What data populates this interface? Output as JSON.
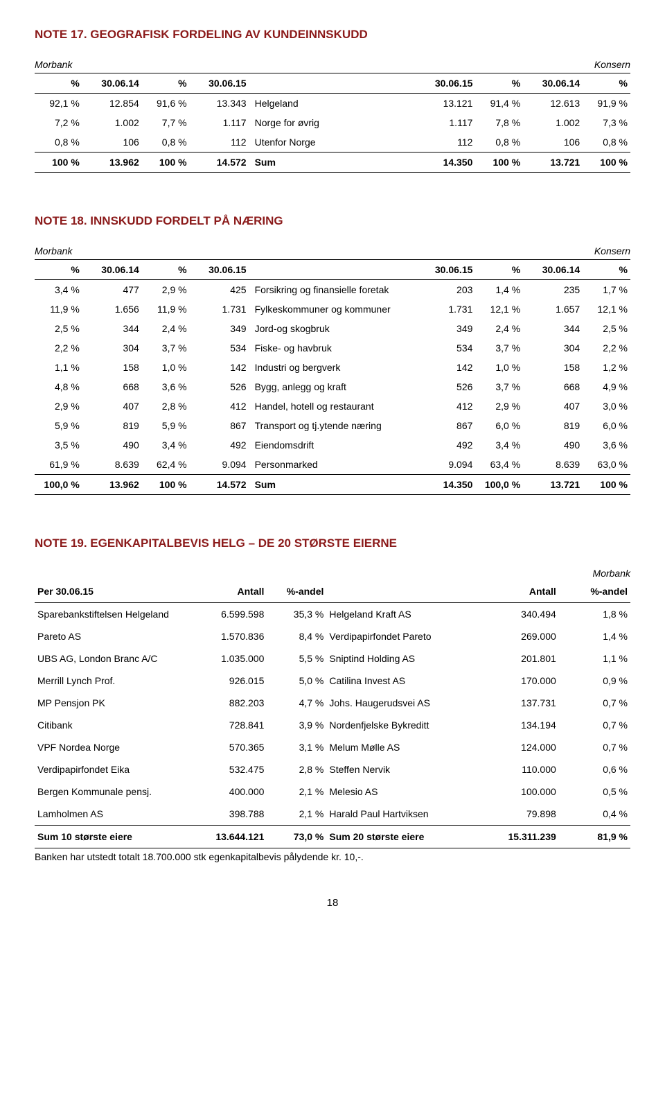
{
  "labels": {
    "morbank": "Morbank",
    "konsern": "Konsern"
  },
  "note17": {
    "title": "NOTE 17. GEOGRAFISK FORDELING AV KUNDEINNSKUDD",
    "header": [
      "%",
      "30.06.14",
      "%",
      "30.06.15",
      "",
      "30.06.15",
      "%",
      "30.06.14",
      "%"
    ],
    "rows": [
      [
        "92,1 %",
        "12.854",
        "91,6 %",
        "13.343",
        "Helgeland",
        "13.121",
        "91,4 %",
        "12.613",
        "91,9 %"
      ],
      [
        "7,2 %",
        "1.002",
        "7,7 %",
        "1.117",
        "Norge for øvrig",
        "1.117",
        "7,8 %",
        "1.002",
        "7,3 %"
      ],
      [
        "0,8 %",
        "106",
        "0,8 %",
        "112",
        "Utenfor Norge",
        "112",
        "0,8 %",
        "106",
        "0,8 %"
      ]
    ],
    "sum": [
      "100 %",
      "13.962",
      "100 %",
      "14.572",
      "Sum",
      "14.350",
      "100 %",
      "13.721",
      "100 %"
    ]
  },
  "note18": {
    "title": "NOTE 18. INNSKUDD FORDELT PÅ NÆRING",
    "header": [
      "%",
      "30.06.14",
      "%",
      "30.06.15",
      "",
      "30.06.15",
      "%",
      "30.06.14",
      "%"
    ],
    "rows": [
      [
        "3,4 %",
        "477",
        "2,9 %",
        "425",
        "Forsikring og finansielle foretak",
        "203",
        "1,4 %",
        "235",
        "1,7 %"
      ],
      [
        "11,9 %",
        "1.656",
        "11,9 %",
        "1.731",
        "Fylkeskommuner og kommuner",
        "1.731",
        "12,1 %",
        "1.657",
        "12,1 %"
      ],
      [
        "2,5 %",
        "344",
        "2,4 %",
        "349",
        "Jord-og skogbruk",
        "349",
        "2,4 %",
        "344",
        "2,5 %"
      ],
      [
        "2,2 %",
        "304",
        "3,7 %",
        "534",
        "Fiske- og havbruk",
        "534",
        "3,7 %",
        "304",
        "2,2 %"
      ],
      [
        "1,1 %",
        "158",
        "1,0 %",
        "142",
        "Industri og bergverk",
        "142",
        "1,0 %",
        "158",
        "1,2 %"
      ],
      [
        "4,8 %",
        "668",
        "3,6 %",
        "526",
        "Bygg, anlegg og kraft",
        "526",
        "3,7 %",
        "668",
        "4,9 %"
      ],
      [
        "2,9 %",
        "407",
        "2,8 %",
        "412",
        "Handel, hotell og restaurant",
        "412",
        "2,9 %",
        "407",
        "3,0 %"
      ],
      [
        "5,9 %",
        "819",
        "5,9 %",
        "867",
        "Transport og tj.ytende næring",
        "867",
        "6,0 %",
        "819",
        "6,0 %"
      ],
      [
        "3,5 %",
        "490",
        "3,4 %",
        "492",
        "Eiendomsdrift",
        "492",
        "3,4 %",
        "490",
        "3,6 %"
      ],
      [
        "61,9 %",
        "8.639",
        "62,4 %",
        "9.094",
        "Personmarked",
        "9.094",
        "63,4 %",
        "8.639",
        "63,0 %"
      ]
    ],
    "sum": [
      "100,0 %",
      "13.962",
      "100 %",
      "14.572",
      "Sum",
      "14.350",
      "100,0 %",
      "13.721",
      "100 %"
    ]
  },
  "note19": {
    "title": "NOTE 19. EGENKAPITALBEVIS HELG – DE 20 STØRSTE EIERNE",
    "header": [
      "Per 30.06.15",
      "Antall",
      "%-andel",
      "",
      "Antall",
      "%-andel"
    ],
    "rows": [
      [
        "Sparebankstiftelsen Helgeland",
        "6.599.598",
        "35,3 %",
        "Helgeland Kraft AS",
        "340.494",
        "1,8 %"
      ],
      [
        "Pareto AS",
        "1.570.836",
        "8,4 %",
        "Verdipapirfondet Pareto",
        "269.000",
        "1,4 %"
      ],
      [
        "UBS AG, London Branc A/C",
        "1.035.000",
        "5,5 %",
        "Sniptind Holding AS",
        "201.801",
        "1,1 %"
      ],
      [
        "Merrill Lynch Prof.",
        "926.015",
        "5,0 %",
        "Catilina Invest AS",
        "170.000",
        "0,9 %"
      ],
      [
        "MP Pensjon PK",
        "882.203",
        "4,7 %",
        "Johs. Haugerudsvei AS",
        "137.731",
        "0,7 %"
      ],
      [
        "Citibank",
        "728.841",
        "3,9 %",
        "Nordenfjelske Bykreditt",
        "134.194",
        "0,7 %"
      ],
      [
        "VPF Nordea Norge",
        "570.365",
        "3,1 %",
        "Melum Mølle AS",
        "124.000",
        "0,7 %"
      ],
      [
        "Verdipapirfondet Eika",
        "532.475",
        "2,8 %",
        "Steffen Nervik",
        "110.000",
        "0,6 %"
      ],
      [
        "Bergen Kommunale pensj.",
        "400.000",
        "2,1 %",
        "Melesio AS",
        "100.000",
        "0,5 %"
      ],
      [
        "Lamholmen AS",
        "398.788",
        "2,1 %",
        "Harald Paul Hartviksen",
        "79.898",
        "0,4 %"
      ]
    ],
    "sum": [
      "Sum 10 største eiere",
      "13.644.121",
      "73,0 %",
      "Sum 20 største eiere",
      "15.311.239",
      "81,9 %"
    ],
    "footnote": "Banken har utstedt totalt 18.700.000 stk egenkapitalbevis pålydende kr. 10,-."
  },
  "page_number": "18"
}
